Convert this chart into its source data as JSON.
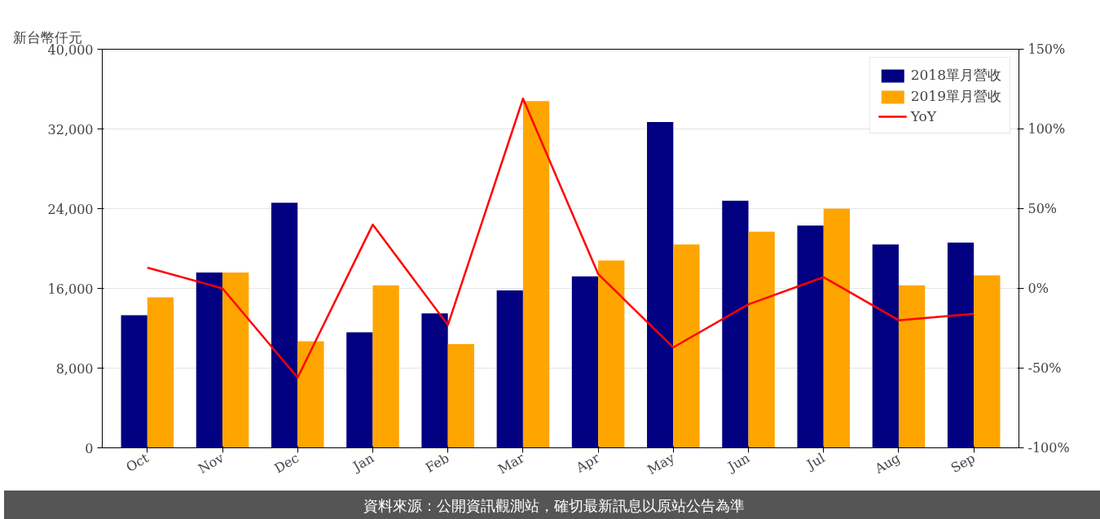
{
  "chart_data": {
    "type": "bar",
    "ylabel": "新台幣仟元",
    "categories": [
      "Oct",
      "Nov",
      "Dec",
      "Jan",
      "Feb",
      "Mar",
      "Apr",
      "May",
      "Jun",
      "Jul",
      "Aug",
      "Sep"
    ],
    "series": [
      {
        "name": "2018單月營收",
        "color": "#000080",
        "values": [
          13300,
          17600,
          24600,
          11600,
          13500,
          15800,
          17200,
          32700,
          24800,
          22300,
          20400,
          20600
        ]
      },
      {
        "name": "2019單月營收",
        "color": "#ffa500",
        "values": [
          15100,
          17600,
          10700,
          16300,
          10400,
          34800,
          18800,
          20400,
          21700,
          24000,
          16300,
          17300
        ]
      },
      {
        "name": "YoY",
        "type": "line",
        "axis": "y2",
        "color": "#ff0000",
        "values": [
          13,
          0,
          -56,
          40,
          -23,
          119,
          9,
          -37,
          -10,
          7,
          -20,
          -16
        ]
      }
    ],
    "ylim": [
      0,
      40000
    ],
    "yticks": [
      0,
      {
        "value": 8000,
        "label": "8,000"
      },
      {
        "value": 16000,
        "label": "16,000"
      },
      {
        "value": 24000,
        "label": "24,000"
      },
      {
        "value": 32000,
        "label": "32,000"
      },
      {
        "value": 40000,
        "label": "40,000"
      }
    ],
    "y2lim": [
      -100,
      150
    ],
    "y2ticks": [
      {
        "value": -100,
        "label": "-100%"
      },
      {
        "value": -50,
        "label": "-50%"
      },
      {
        "value": 0,
        "label": "0%"
      },
      {
        "value": 50,
        "label": "50%"
      },
      {
        "value": 100,
        "label": "100%"
      },
      {
        "value": 150,
        "label": "150%"
      }
    ],
    "grid": "y",
    "legend": "top right",
    "annotations": [
      "資料來源：公開資訊觀測站，確切最新訊息以原站公告為準"
    ]
  }
}
